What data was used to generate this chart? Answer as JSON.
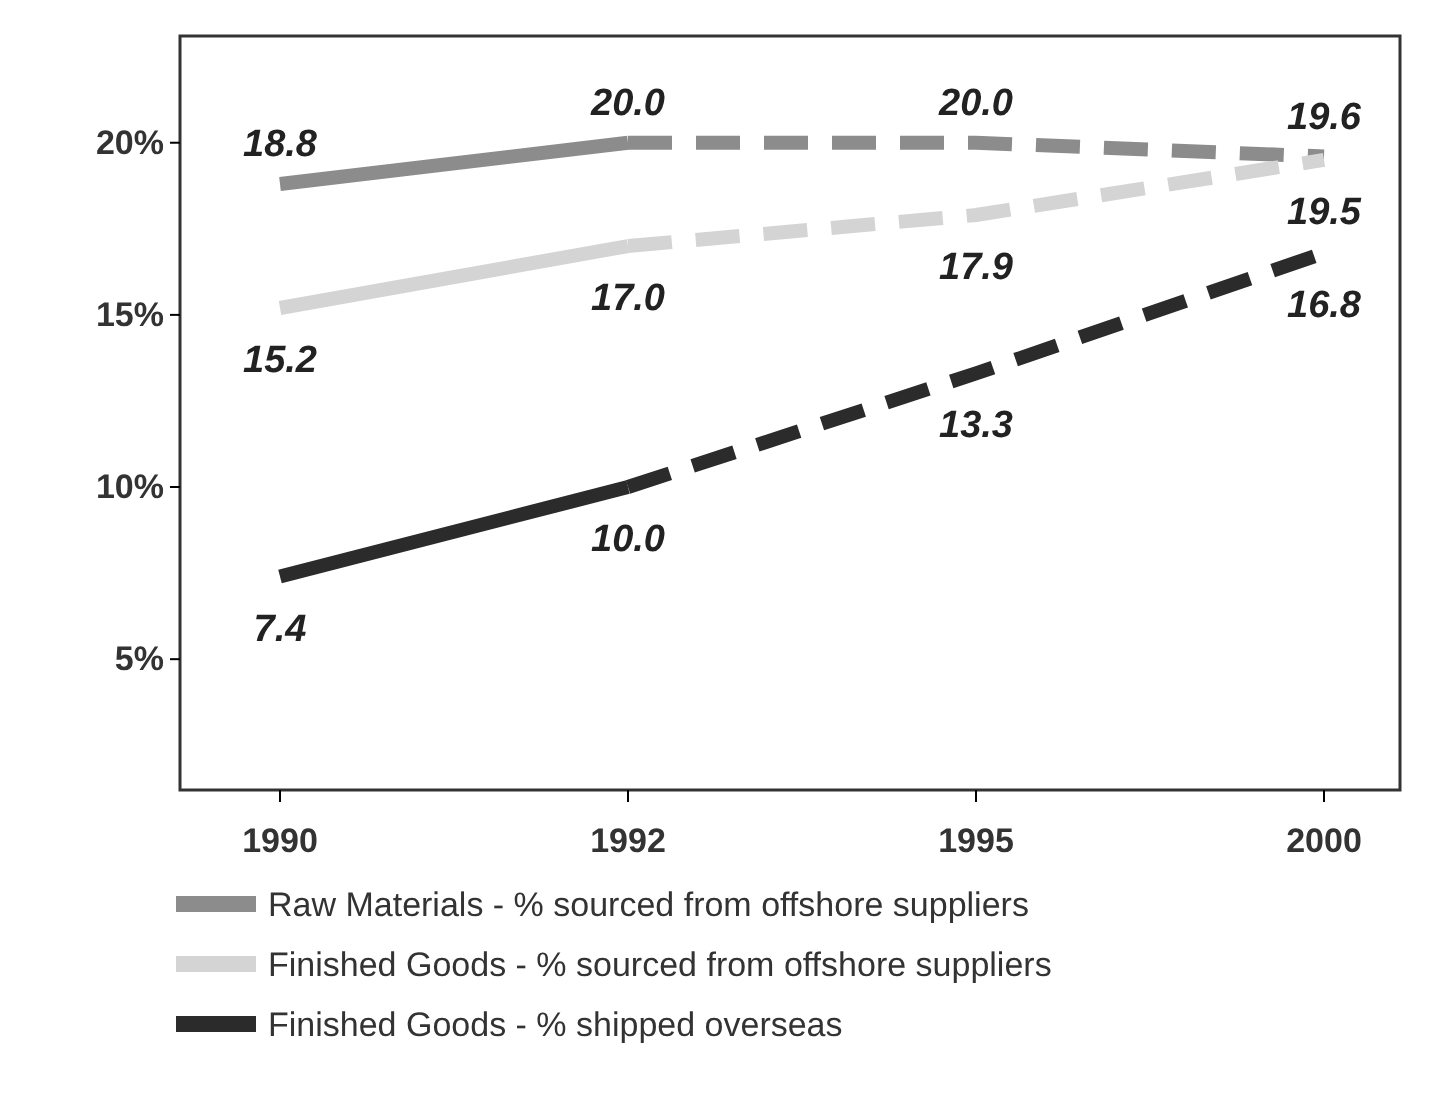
{
  "chart_data": {
    "type": "line",
    "categories": [
      "1990",
      "1992",
      "1995",
      "2000"
    ],
    "ylim": [
      1.2,
      23.1
    ],
    "yticks": [
      {
        "value": 5,
        "label": "5%"
      },
      {
        "value": 10,
        "label": "10%"
      },
      {
        "value": 15,
        "label": "15%"
      },
      {
        "value": 20,
        "label": "20%"
      }
    ],
    "grid": false,
    "legend": "bottom",
    "marker": "none",
    "series": [
      {
        "name": "Raw Materials - % sourced from offshore suppliers",
        "color": "#8c8c8c",
        "line_style": "solid",
        "values": [
          18.8,
          20.0,
          null,
          null
        ],
        "value_labels": [
          "18.8",
          "20.0",
          null,
          null
        ]
      },
      {
        "color": "#8c8c8c",
        "line_style": "dashed",
        "values": [
          null,
          20.0,
          20.0,
          19.6
        ],
        "value_labels": [
          null,
          null,
          "20.0",
          "19.6"
        ]
      },
      {
        "name": "Finished Goods - % sourced from offshore suppliers",
        "color": "#d4d4d4",
        "line_style": "solid",
        "values": [
          15.2,
          17.0,
          null,
          null
        ],
        "value_labels": [
          "15.2",
          "17.0",
          null,
          null
        ]
      },
      {
        "color": "#d4d4d4",
        "line_style": "dashed",
        "values": [
          null,
          17.0,
          17.9,
          19.5
        ],
        "value_labels": [
          null,
          null,
          "17.9",
          "19.5"
        ]
      },
      {
        "name": "Finished Goods - % shipped overseas",
        "color": "#2b2b2b",
        "line_style": "solid",
        "values": [
          7.4,
          10.0,
          null,
          null
        ],
        "value_labels": [
          "7.4",
          "10.0",
          null,
          null
        ]
      },
      {
        "color": "#2b2b2b",
        "line_style": "dashed",
        "values": [
          null,
          10.0,
          13.3,
          16.8
        ],
        "value_labels": [
          null,
          null,
          "13.3",
          "16.8"
        ]
      }
    ]
  }
}
